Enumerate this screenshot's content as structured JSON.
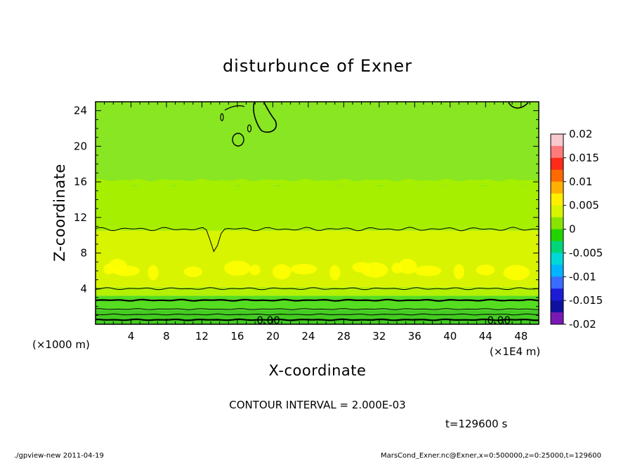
{
  "chart_data": {
    "type": "heatmap",
    "title": "disturbunce of Exner",
    "xlabel": "X-coordinate",
    "ylabel": "Z-coordinate",
    "x_unit_label": "(×1000 m)",
    "x_scale_label": "(×1E4 m)",
    "xlim": [
      0,
      50
    ],
    "ylim": [
      0,
      25
    ],
    "x_ticks": [
      4,
      8,
      12,
      16,
      20,
      24,
      28,
      32,
      36,
      40,
      44,
      48
    ],
    "y_ticks": [
      4,
      8,
      12,
      16,
      20,
      24
    ],
    "colorbar": {
      "min": -0.02,
      "max": 0.02,
      "labels": [
        "0.02",
        "0.015",
        "0.01",
        "0.005",
        "0",
        "-0.005",
        "-0.01",
        "-0.015",
        "-0.02"
      ],
      "values": [
        0.02,
        0.015,
        0.01,
        0.005,
        0,
        -0.005,
        -0.01,
        -0.015,
        -0.02
      ]
    },
    "contour_interval_text": "CONTOUR INTERVAL = 2.000E-03",
    "contour_labels": [
      "0.00",
      "0.00"
    ],
    "time_text": "t=129600 s",
    "bands": [
      {
        "z_from": 0,
        "z_to": 1.6,
        "value": -0.0008
      },
      {
        "z_from": 1.6,
        "z_to": 3.2,
        "value": 0.0012
      },
      {
        "z_from": 3.2,
        "z_to": 4.2,
        "value": 0.0032
      },
      {
        "z_from": 4.2,
        "z_to": 10.5,
        "value": 0.0052
      },
      {
        "z_from": 10.5,
        "z_to": 15.5,
        "value": 0.0038
      },
      {
        "z_from": 15.5,
        "z_to": 25,
        "value": 0.0026
      }
    ]
  },
  "footer": {
    "left": "./gpview-new  2011-04-19",
    "right": "MarsCond_Exner.nc@Exner,x=0:500000,z=0:25000,t=129600"
  },
  "colors": {
    "lowest": "#44cc22",
    "low_band": "#55dd22",
    "mid_band": "#b4f000",
    "upper_band": "#d8f400",
    "peak": "#ffff00",
    "top_band": "#a6ef00",
    "top_region": "#88e622"
  }
}
